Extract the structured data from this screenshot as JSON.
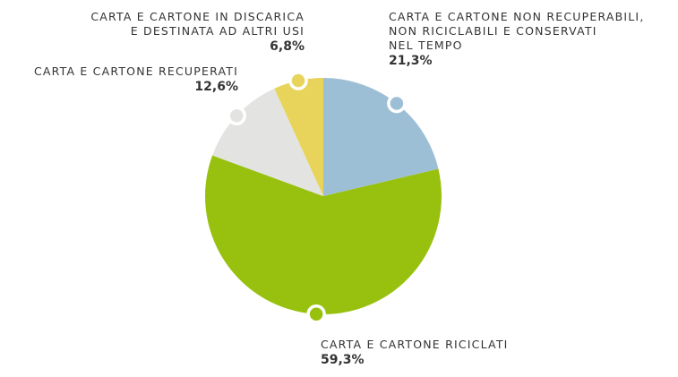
{
  "chart_data": {
    "type": "pie",
    "categories": [
      "CARTA E CARTONE NON RECUPERABILI,\nNON RICICLABILI E CONSERVATI\nNEL TEMPO",
      "CARTA E CARTONE RICICLATI",
      "CARTA E CARTONE RECUPERATI",
      "CARTA E CARTONE IN DISCARICA\nE DESTINATA AD ALTRI USI"
    ],
    "values": [
      21.3,
      59.3,
      12.6,
      6.8
    ],
    "value_labels": [
      "21,3%",
      "59,3%",
      "12,6%",
      "6,8%"
    ],
    "colors": [
      "#9dbfd6",
      "#98c10f",
      "#e3e4e2",
      "#e8d45a"
    ]
  }
}
